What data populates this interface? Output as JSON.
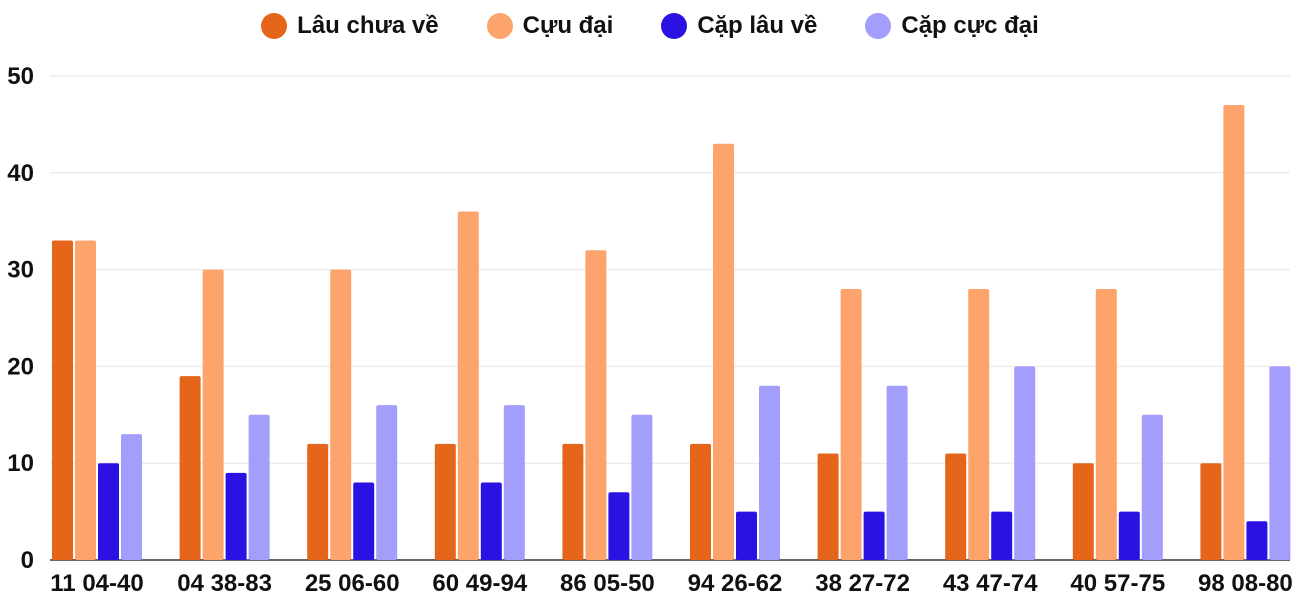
{
  "chart_data": {
    "type": "bar",
    "title": "",
    "xlabel": "",
    "ylabel": "",
    "ylim": [
      0,
      50
    ],
    "yticks": [
      0,
      10,
      20,
      30,
      40,
      50
    ],
    "grid": true,
    "legend_position": "top-center",
    "categories": [
      "11 04-40",
      "04 38-83",
      "25 06-60",
      "60 49-94",
      "86 05-50",
      "94 26-62",
      "38 27-72",
      "43 47-74",
      "40 57-75",
      "98 08-80"
    ],
    "series": [
      {
        "name": "Lâu chưa về",
        "color": "#e5661a",
        "values": [
          33,
          19,
          12,
          12,
          12,
          12,
          11,
          11,
          10,
          10
        ]
      },
      {
        "name": "Cựu đại",
        "color": "#fca46b",
        "values": [
          33,
          30,
          30,
          36,
          32,
          43,
          28,
          28,
          28,
          47
        ]
      },
      {
        "name": "Cặp lâu về",
        "color": "#2b12e3",
        "values": [
          10,
          9,
          8,
          8,
          7,
          5,
          5,
          5,
          5,
          4
        ]
      },
      {
        "name": "Cặp cực đại",
        "color": "#a39dfb",
        "values": [
          13,
          15,
          16,
          16,
          15,
          18,
          18,
          20,
          15,
          20
        ]
      }
    ]
  }
}
